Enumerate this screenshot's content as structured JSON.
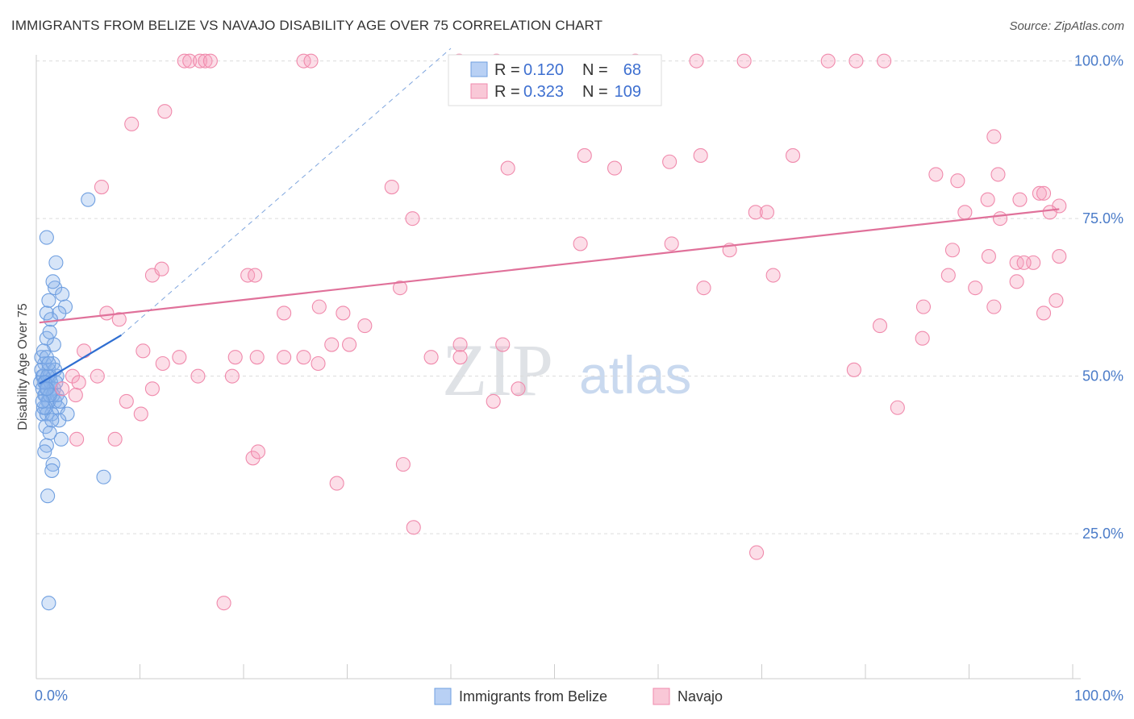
{
  "title": "IMMIGRANTS FROM BELIZE VS NAVAJO DISABILITY AGE OVER 75 CORRELATION CHART",
  "source": "Source: ZipAtlas.com",
  "watermark": {
    "zip": "ZIP",
    "atlas": "atlas"
  },
  "chart_data": {
    "type": "scatter",
    "ylabel": "Disability Age Over 75",
    "xlim": [
      0,
      100
    ],
    "ylim": [
      2,
      102
    ],
    "x_tick_labels": {
      "left": "0.0%",
      "right": "100.0%"
    },
    "y_ticks": [
      {
        "value": 25,
        "label": "25.0%"
      },
      {
        "value": 50,
        "label": "50.0%"
      },
      {
        "value": 75,
        "label": "75.0%"
      },
      {
        "value": 100,
        "label": "100.0%"
      }
    ],
    "legend": {
      "rows": [
        {
          "r_label": "R =",
          "r_value": "0.120",
          "n_label": "N =",
          "n_value": "68",
          "color": "#6f9fe0"
        },
        {
          "r_label": "R =",
          "r_value": "0.323",
          "n_label": "N =",
          "n_value": "109",
          "color": "#f08aac"
        }
      ]
    },
    "series": [
      {
        "name": "Immigrants from Belize",
        "color": "#6f9fe0",
        "trend": {
          "x0": 0.3,
          "y0": 48.8,
          "x1": 8.2,
          "y1": 56.5,
          "dash_to_x": 40,
          "dash_to_y": 102
        },
        "points": [
          [
            0.8,
            52
          ],
          [
            1.1,
            49
          ],
          [
            0.6,
            50
          ],
          [
            1.4,
            48
          ],
          [
            0.9,
            47
          ],
          [
            1.2,
            51
          ],
          [
            0.5,
            53
          ],
          [
            1.7,
            55
          ],
          [
            1.0,
            56
          ],
          [
            1.3,
            57
          ],
          [
            0.7,
            54
          ],
          [
            1.6,
            52
          ],
          [
            2.0,
            50
          ],
          [
            0.4,
            49
          ],
          [
            1.1,
            46
          ],
          [
            1.8,
            46
          ],
          [
            2.1,
            45
          ],
          [
            0.6,
            44
          ],
          [
            1.0,
            44
          ],
          [
            1.5,
            44
          ],
          [
            3.0,
            44
          ],
          [
            2.2,
            43
          ],
          [
            0.9,
            42
          ],
          [
            1.3,
            41
          ],
          [
            2.4,
            40
          ],
          [
            1.0,
            39
          ],
          [
            0.8,
            38
          ],
          [
            1.6,
            36
          ],
          [
            1.5,
            35
          ],
          [
            6.5,
            34
          ],
          [
            1.1,
            31
          ],
          [
            1.0,
            60
          ],
          [
            1.2,
            62
          ],
          [
            1.8,
            64
          ],
          [
            1.6,
            65
          ],
          [
            2.5,
            63
          ],
          [
            2.8,
            61
          ],
          [
            2.2,
            60
          ],
          [
            1.4,
            59
          ],
          [
            1.9,
            68
          ],
          [
            1.0,
            72
          ],
          [
            5.0,
            78
          ],
          [
            1.2,
            14
          ],
          [
            0.7,
            50
          ],
          [
            0.9,
            49
          ],
          [
            1.1,
            48
          ],
          [
            1.3,
            50
          ],
          [
            0.6,
            48
          ],
          [
            0.8,
            47
          ],
          [
            1.4,
            49
          ],
          [
            1.7,
            48
          ],
          [
            0.5,
            51
          ],
          [
            1.2,
            46
          ],
          [
            0.9,
            45
          ],
          [
            1.5,
            43
          ],
          [
            2.0,
            47
          ],
          [
            1.8,
            51
          ],
          [
            1.0,
            53
          ],
          [
            0.7,
            45
          ],
          [
            1.6,
            47
          ],
          [
            2.3,
            46
          ],
          [
            1.1,
            50
          ],
          [
            0.8,
            49
          ],
          [
            1.3,
            47
          ],
          [
            0.6,
            46
          ],
          [
            1.9,
            49
          ],
          [
            1.2,
            52
          ],
          [
            1.0,
            48
          ]
        ]
      },
      {
        "name": "Navajo",
        "color": "#f08aac",
        "trend": {
          "x0": 0.3,
          "y0": 58.5,
          "x1": 98.7,
          "y1": 76.5
        },
        "points": [
          [
            14.3,
            100
          ],
          [
            14.8,
            100
          ],
          [
            15.8,
            100
          ],
          [
            16.3,
            100
          ],
          [
            16.8,
            100
          ],
          [
            25.8,
            100
          ],
          [
            26.5,
            100
          ],
          [
            40.8,
            100
          ],
          [
            44.4,
            100
          ],
          [
            57.8,
            100
          ],
          [
            63.7,
            100
          ],
          [
            68.3,
            100
          ],
          [
            76.4,
            100
          ],
          [
            81.8,
            100
          ],
          [
            79.1,
            100
          ],
          [
            12.4,
            92
          ],
          [
            9.2,
            90
          ],
          [
            92.4,
            88
          ],
          [
            52.9,
            85
          ],
          [
            64.1,
            85
          ],
          [
            55.8,
            83
          ],
          [
            73.0,
            85
          ],
          [
            86.8,
            82
          ],
          [
            88.9,
            81
          ],
          [
            92.8,
            82
          ],
          [
            61.1,
            84
          ],
          [
            45.5,
            83
          ],
          [
            34.3,
            80
          ],
          [
            6.3,
            80
          ],
          [
            91.8,
            78
          ],
          [
            94.9,
            78
          ],
          [
            96.8,
            79
          ],
          [
            97.2,
            79
          ],
          [
            98.7,
            77
          ],
          [
            69.4,
            76
          ],
          [
            70.5,
            76
          ],
          [
            89.6,
            76
          ],
          [
            93.0,
            75
          ],
          [
            97.8,
            76
          ],
          [
            36.3,
            75
          ],
          [
            52.5,
            71
          ],
          [
            61.3,
            71
          ],
          [
            88.4,
            70
          ],
          [
            91.9,
            69
          ],
          [
            66.9,
            70
          ],
          [
            94.6,
            68
          ],
          [
            96.2,
            68
          ],
          [
            95.3,
            68
          ],
          [
            98.7,
            69
          ],
          [
            88.0,
            66
          ],
          [
            64.4,
            64
          ],
          [
            71.1,
            66
          ],
          [
            90.6,
            64
          ],
          [
            94.6,
            65
          ],
          [
            98.4,
            62
          ],
          [
            97.2,
            60
          ],
          [
            85.6,
            61
          ],
          [
            11.2,
            66
          ],
          [
            12.1,
            67
          ],
          [
            20.4,
            66
          ],
          [
            21.1,
            66
          ],
          [
            23.9,
            60
          ],
          [
            27.3,
            61
          ],
          [
            29.6,
            60
          ],
          [
            35.1,
            64
          ],
          [
            6.8,
            60
          ],
          [
            8.0,
            59
          ],
          [
            10.3,
            54
          ],
          [
            12.2,
            52
          ],
          [
            13.8,
            53
          ],
          [
            19.2,
            53
          ],
          [
            21.3,
            53
          ],
          [
            23.9,
            53
          ],
          [
            25.8,
            53
          ],
          [
            28.5,
            55
          ],
          [
            30.2,
            55
          ],
          [
            31.7,
            58
          ],
          [
            38.1,
            53
          ],
          [
            40.9,
            55
          ],
          [
            45.0,
            55
          ],
          [
            4.6,
            54
          ],
          [
            5.9,
            50
          ],
          [
            3.5,
            50
          ],
          [
            4.1,
            49
          ],
          [
            2.5,
            48
          ],
          [
            3.8,
            47
          ],
          [
            8.7,
            46
          ],
          [
            10.1,
            44
          ],
          [
            11.2,
            48
          ],
          [
            15.6,
            50
          ],
          [
            18.9,
            50
          ],
          [
            27.2,
            52
          ],
          [
            35.4,
            36
          ],
          [
            20.9,
            37
          ],
          [
            21.4,
            38
          ],
          [
            29.0,
            33
          ],
          [
            36.4,
            26
          ],
          [
            3.9,
            40
          ],
          [
            7.6,
            40
          ],
          [
            18.1,
            14
          ],
          [
            69.5,
            22
          ],
          [
            83.1,
            45
          ],
          [
            78.9,
            51
          ],
          [
            44.1,
            46
          ],
          [
            46.5,
            48
          ],
          [
            40.9,
            53
          ],
          [
            81.4,
            58
          ],
          [
            85.5,
            56
          ],
          [
            92.4,
            61
          ]
        ]
      }
    ]
  }
}
